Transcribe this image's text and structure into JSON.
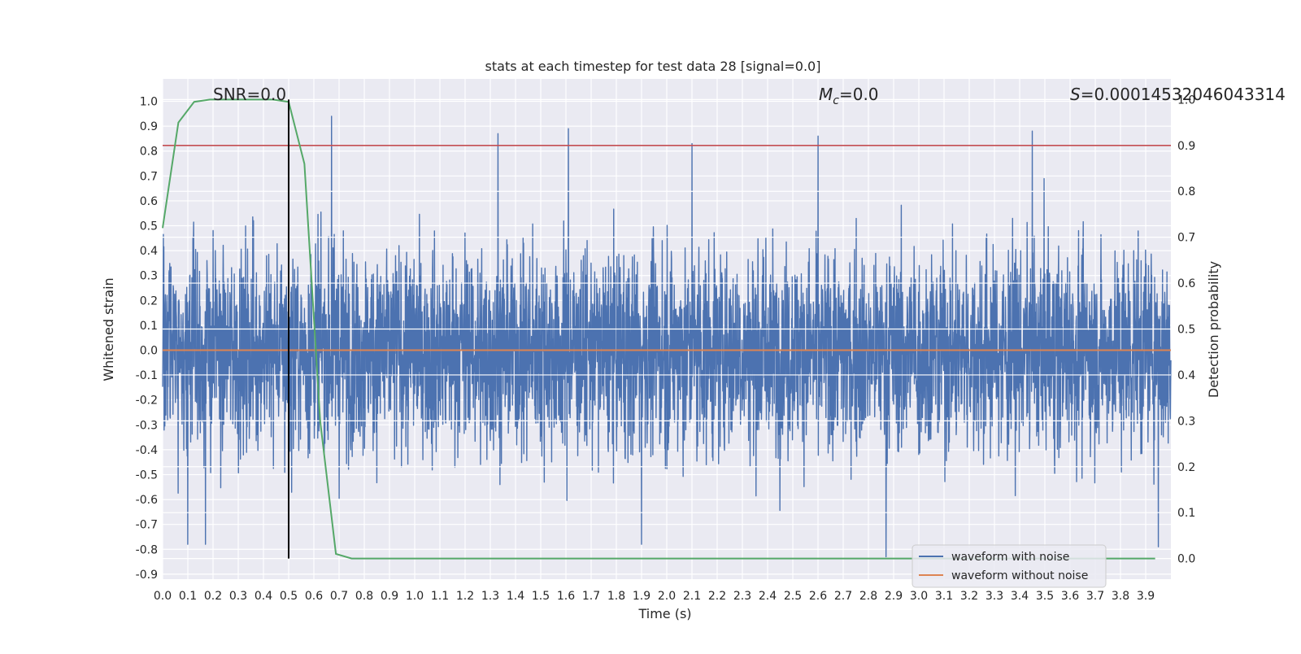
{
  "chart_data": {
    "type": "line",
    "title": "stats at each timestep for test data 28 [signal=0.0]",
    "xlabel": "Time (s)",
    "ylabel": "Whitened strain",
    "y2label": "Detection probability",
    "xlim": [
      0.0,
      4.0
    ],
    "ylim": [
      -0.92,
      1.09
    ],
    "y2lim": [
      -0.045,
      1.045
    ],
    "xticks": [
      "0.0",
      "0.1",
      "0.2",
      "0.3",
      "0.4",
      "0.5",
      "0.6",
      "0.7",
      "0.8",
      "0.9",
      "1.0",
      "1.1",
      "1.2",
      "1.3",
      "1.4",
      "1.5",
      "1.6",
      "1.7",
      "1.8",
      "1.9",
      "2.0",
      "2.1",
      "2.2",
      "2.3",
      "2.4",
      "2.5",
      "2.6",
      "2.7",
      "2.8",
      "2.9",
      "3.0",
      "3.1",
      "3.2",
      "3.3",
      "3.4",
      "3.5",
      "3.6",
      "3.7",
      "3.8",
      "3.9"
    ],
    "yticks": [
      "1.0",
      "0.9",
      "0.8",
      "0.7",
      "0.6",
      "0.5",
      "0.4",
      "0.3",
      "0.2",
      "0.1",
      "0.0",
      "-0.1",
      "-0.2",
      "-0.3",
      "-0.4",
      "-0.5",
      "-0.6",
      "-0.7",
      "-0.8",
      "-0.9"
    ],
    "y2ticks": [
      "1.0",
      "0.9",
      "0.8",
      "0.7",
      "0.6",
      "0.5",
      "0.4",
      "0.3",
      "0.2",
      "0.1",
      "0.0"
    ],
    "grid": true,
    "legend_position": "lower-right",
    "annotations": {
      "snr": "SNR=0.0",
      "mc": "M",
      "mc_sub": "c",
      "mc_val": "=0.0",
      "s": "S",
      "s_val": "=0.00014532046043314"
    },
    "series": [
      {
        "name": "waveform with noise",
        "color": "#4c72b0",
        "axis": "left",
        "noise_amplitude_typical": 0.3,
        "peaks": [
          {
            "x": 0.5,
            "y": 0.81
          },
          {
            "x": 0.67,
            "y": 0.94
          },
          {
            "x": 1.33,
            "y": 0.87
          },
          {
            "x": 1.61,
            "y": 0.89
          },
          {
            "x": 2.1,
            "y": 0.83
          },
          {
            "x": 2.6,
            "y": 0.86
          },
          {
            "x": 3.45,
            "y": 0.88
          },
          {
            "x": 2.87,
            "y": -0.83
          },
          {
            "x": 0.1,
            "y": -0.78
          },
          {
            "x": 0.17,
            "y": -0.78
          },
          {
            "x": 1.9,
            "y": -0.78
          },
          {
            "x": 3.95,
            "y": -0.79
          }
        ]
      },
      {
        "name": "waveform without noise",
        "color": "#dd8452",
        "axis": "left",
        "x": [
          0.0,
          4.0
        ],
        "y": [
          0.0,
          0.0
        ]
      },
      {
        "color": "#55a868",
        "axis": "right",
        "x": [
          0.0,
          0.0625,
          0.125,
          0.1875,
          0.25,
          0.3125,
          0.375,
          0.4375,
          0.5,
          0.5625,
          0.625,
          0.6875,
          0.75,
          0.8125,
          3.9375
        ],
        "y": [
          0.72,
          0.95,
          0.995,
          1.0,
          1.0,
          1.0,
          1.0,
          1.0,
          0.995,
          0.86,
          0.3,
          0.01,
          0.0,
          0.0,
          0.0
        ]
      }
    ],
    "threshold": {
      "axis": "right",
      "value": 0.9,
      "color": "#c44e52"
    },
    "marker_line": {
      "x": 0.5,
      "color": "#000000"
    }
  }
}
